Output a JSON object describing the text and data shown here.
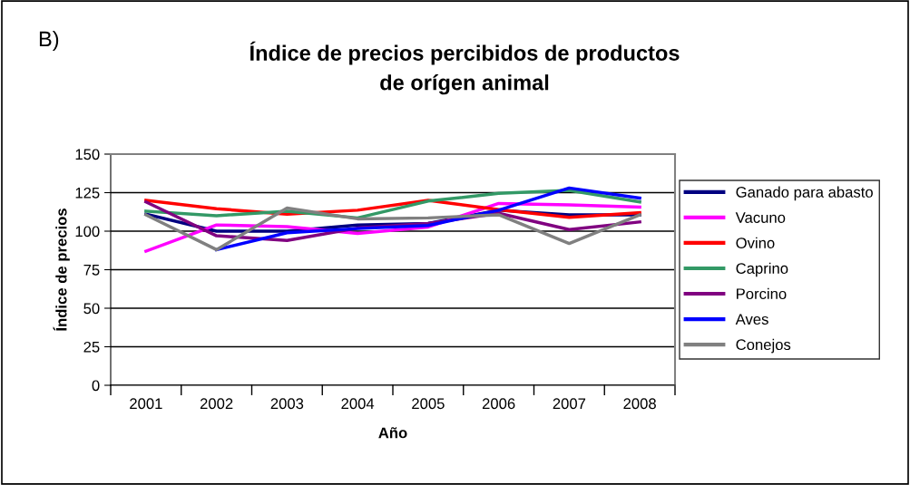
{
  "chart_data": {
    "type": "line",
    "title": "Índice de precios percibidos de productos\nde orígen animal",
    "xlabel": "Año",
    "ylabel": "Índice de precios",
    "annotations": [
      "B)"
    ],
    "categories": [
      "2001",
      "2002",
      "2003",
      "2004",
      "2005",
      "2006",
      "2007",
      "2008"
    ],
    "series": [
      {
        "name": "Ganado para abasto",
        "color": "#000080",
        "values": [
          111,
          100,
          100,
          104,
          105,
          113.6,
          110.6,
          110.6
        ]
      },
      {
        "name": "Vacuno",
        "color": "#ff00ff",
        "values": [
          87,
          104,
          103,
          98.5,
          102.7,
          118,
          117,
          115.6
        ]
      },
      {
        "name": "Ovino",
        "color": "#ff0000",
        "values": [
          120,
          114.6,
          111,
          113.6,
          120,
          114,
          109,
          112
        ]
      },
      {
        "name": "Caprino",
        "color": "#339966",
        "values": [
          113,
          110,
          113,
          108.6,
          119.5,
          124.5,
          126.5,
          119
        ]
      },
      {
        "name": "Porcino",
        "color": "#800080",
        "values": [
          119,
          97,
          94,
          102,
          105,
          111.6,
          101,
          106
        ]
      },
      {
        "name": "Aves",
        "color": "#0000ff",
        "values": [
          null,
          88,
          99,
          101.7,
          103.7,
          113.6,
          128,
          121.5
        ]
      },
      {
        "name": "Conejos",
        "color": "#808080",
        "values": [
          110.6,
          88,
          115,
          108,
          108.6,
          110.6,
          92,
          110.6
        ]
      }
    ],
    "ylim": [
      0,
      150
    ],
    "yticks": [
      0,
      25,
      50,
      75,
      100,
      125,
      150
    ],
    "grid": "y",
    "legend": "right",
    "marker": "none",
    "line_style": "solid"
  }
}
